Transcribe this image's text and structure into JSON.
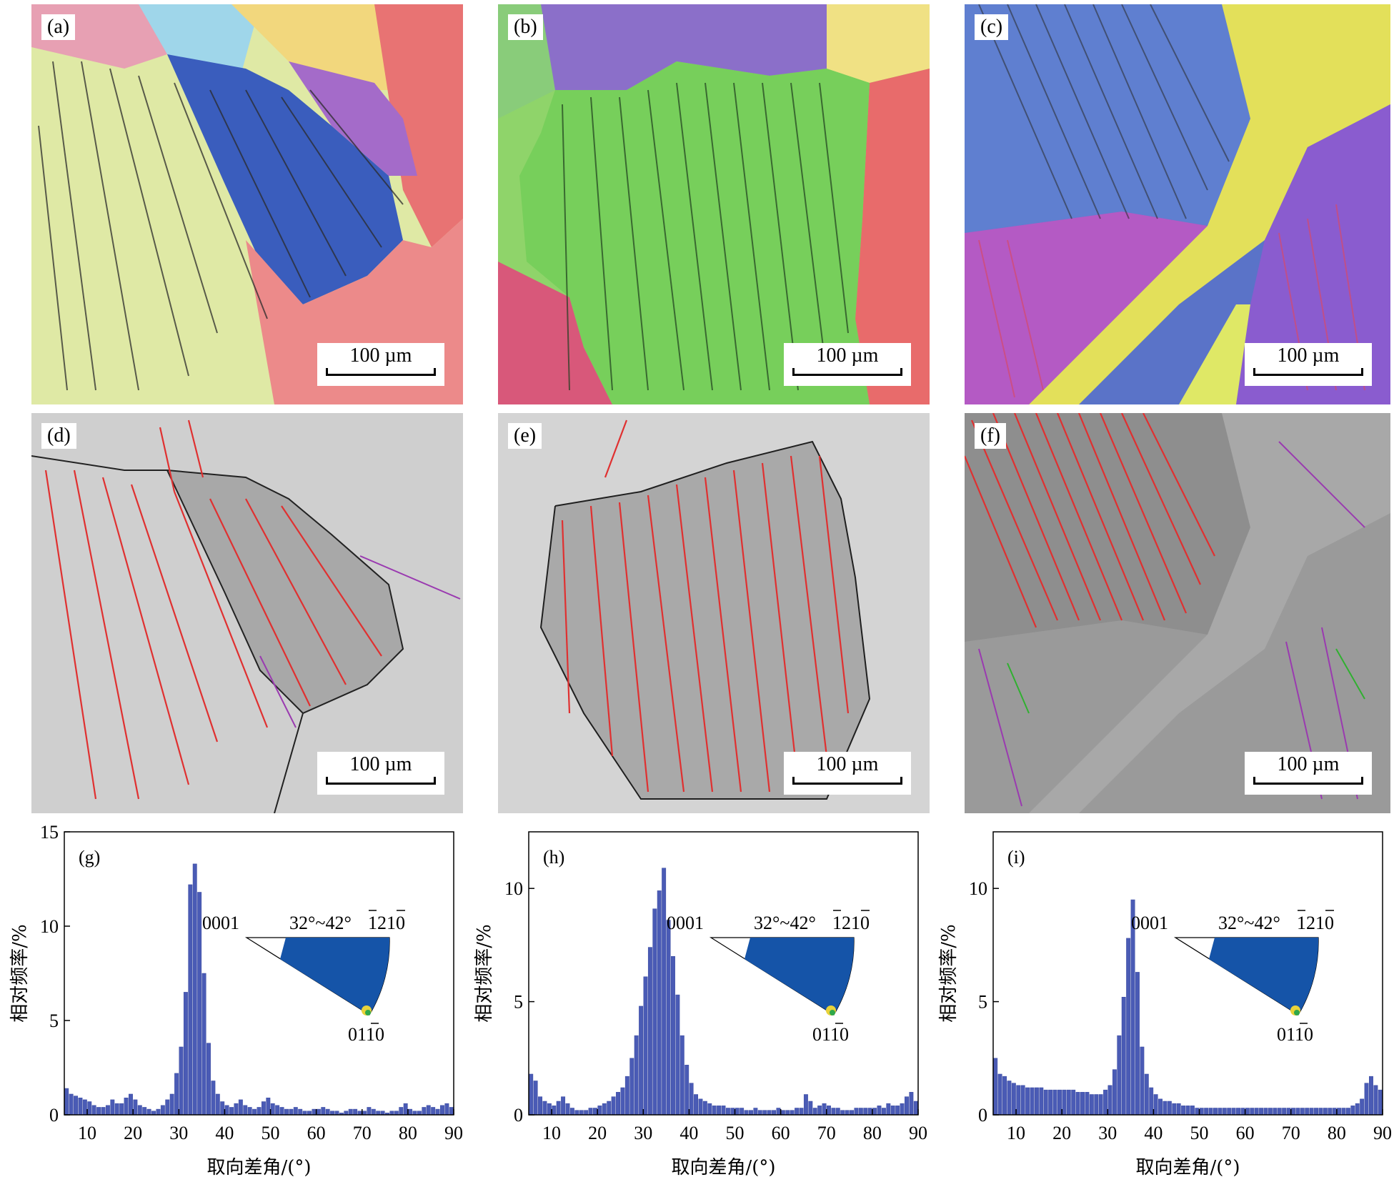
{
  "panels": [
    {
      "label": "(a)",
      "scale": "100 µm"
    },
    {
      "label": "(b)",
      "scale": "100 µm"
    },
    {
      "label": "(c)",
      "scale": "100 µm"
    },
    {
      "label": "(d)",
      "scale": "100 µm"
    },
    {
      "label": "(e)",
      "scale": "100 µm"
    },
    {
      "label": "(f)",
      "scale": "100 µm"
    }
  ],
  "inset": {
    "left_label": "0001",
    "range_label": "32°~42°",
    "right_label": "1210",
    "bottom_label": "0110"
  },
  "chart_data": [
    {
      "type": "bar",
      "panel_label": "(g)",
      "xlabel": "取向差角/(°)",
      "ylabel": "相对频率/%",
      "xlim": [
        5,
        90
      ],
      "ylim": [
        0,
        15
      ],
      "xticks": [
        "10",
        "20",
        "30",
        "40",
        "50",
        "60",
        "70",
        "80",
        "90"
      ],
      "yticks": [
        "0",
        "5",
        "10",
        "15"
      ],
      "x": [
        6,
        7,
        8,
        9,
        10,
        11,
        12,
        13,
        14,
        15,
        16,
        17,
        18,
        19,
        20,
        21,
        22,
        23,
        24,
        25,
        26,
        27,
        28,
        29,
        30,
        31,
        32,
        33,
        34,
        35,
        36,
        37,
        38,
        39,
        40,
        41,
        42,
        43,
        44,
        45,
        46,
        47,
        48,
        49,
        50,
        51,
        52,
        53,
        54,
        55,
        56,
        57,
        58,
        59,
        60,
        61,
        62,
        63,
        64,
        65,
        66,
        67,
        68,
        69,
        70,
        71,
        72,
        73,
        74,
        75,
        76,
        77,
        78,
        79,
        80,
        81,
        82,
        83,
        84,
        85,
        86,
        87,
        88,
        89,
        90
      ],
      "values": [
        1.4,
        1.1,
        1.0,
        0.9,
        0.8,
        0.7,
        0.5,
        0.4,
        0.4,
        0.5,
        0.8,
        0.6,
        0.6,
        0.9,
        1.1,
        0.8,
        0.5,
        0.4,
        0.3,
        0.2,
        0.3,
        0.5,
        0.8,
        1.1,
        2.2,
        3.6,
        6.5,
        12.2,
        13.3,
        11.8,
        7.5,
        3.8,
        1.8,
        1.1,
        0.7,
        0.5,
        0.4,
        0.6,
        0.8,
        0.5,
        0.4,
        0.3,
        0.4,
        0.7,
        0.9,
        0.6,
        0.5,
        0.4,
        0.3,
        0.3,
        0.4,
        0.3,
        0.2,
        0.2,
        0.3,
        0.3,
        0.4,
        0.3,
        0.2,
        0.2,
        0.1,
        0.2,
        0.3,
        0.3,
        0.2,
        0.2,
        0.4,
        0.3,
        0.2,
        0.2,
        0.1,
        0.2,
        0.2,
        0.4,
        0.6,
        0.3,
        0.2,
        0.2,
        0.4,
        0.5,
        0.4,
        0.3,
        0.5,
        0.6,
        0.4
      ]
    },
    {
      "type": "bar",
      "panel_label": "(h)",
      "xlabel": "取向差角/(°)",
      "ylabel": "相对频率/%",
      "xlim": [
        5,
        90
      ],
      "ylim": [
        0,
        12.5
      ],
      "xticks": [
        "10",
        "20",
        "30",
        "40",
        "50",
        "60",
        "70",
        "80",
        "90"
      ],
      "yticks": [
        "0",
        "5",
        "10"
      ],
      "x": [
        6,
        7,
        8,
        9,
        10,
        11,
        12,
        13,
        14,
        15,
        16,
        17,
        18,
        19,
        20,
        21,
        22,
        23,
        24,
        25,
        26,
        27,
        28,
        29,
        30,
        31,
        32,
        33,
        34,
        35,
        36,
        37,
        38,
        39,
        40,
        41,
        42,
        43,
        44,
        45,
        46,
        47,
        48,
        49,
        50,
        51,
        52,
        53,
        54,
        55,
        56,
        57,
        58,
        59,
        60,
        61,
        62,
        63,
        64,
        65,
        66,
        67,
        68,
        69,
        70,
        71,
        72,
        73,
        74,
        75,
        76,
        77,
        78,
        79,
        80,
        81,
        82,
        83,
        84,
        85,
        86,
        87,
        88,
        89,
        90
      ],
      "values": [
        1.8,
        1.5,
        0.8,
        0.6,
        0.5,
        0.4,
        0.6,
        0.8,
        0.5,
        0.3,
        0.2,
        0.2,
        0.2,
        0.3,
        0.3,
        0.4,
        0.5,
        0.6,
        0.8,
        1.0,
        1.2,
        1.7,
        2.5,
        3.5,
        4.8,
        6.1,
        7.4,
        9.1,
        9.9,
        10.9,
        8.6,
        7.0,
        5.3,
        3.5,
        2.2,
        1.4,
        0.9,
        0.7,
        0.6,
        0.5,
        0.4,
        0.4,
        0.4,
        0.3,
        0.3,
        0.3,
        0.3,
        0.2,
        0.2,
        0.3,
        0.2,
        0.2,
        0.2,
        0.2,
        0.3,
        0.2,
        0.2,
        0.2,
        0.3,
        0.3,
        0.9,
        0.6,
        0.3,
        0.4,
        0.5,
        0.4,
        0.3,
        0.3,
        0.2,
        0.2,
        0.2,
        0.3,
        0.3,
        0.3,
        0.3,
        0.3,
        0.4,
        0.3,
        0.5,
        0.4,
        0.4,
        0.5,
        0.8,
        1.0,
        0.6
      ]
    },
    {
      "type": "bar",
      "panel_label": "(i)",
      "xlabel": "取向差角/(°)",
      "ylabel": "相对频率/%",
      "xlim": [
        5,
        90
      ],
      "ylim": [
        0,
        12.5
      ],
      "xticks": [
        "10",
        "20",
        "30",
        "40",
        "50",
        "60",
        "70",
        "80",
        "90"
      ],
      "yticks": [
        "0",
        "5",
        "10"
      ],
      "x": [
        6,
        7,
        8,
        9,
        10,
        11,
        12,
        13,
        14,
        15,
        16,
        17,
        18,
        19,
        20,
        21,
        22,
        23,
        24,
        25,
        26,
        27,
        28,
        29,
        30,
        31,
        32,
        33,
        34,
        35,
        36,
        37,
        38,
        39,
        40,
        41,
        42,
        43,
        44,
        45,
        46,
        47,
        48,
        49,
        50,
        51,
        52,
        53,
        54,
        55,
        56,
        57,
        58,
        59,
        60,
        61,
        62,
        63,
        64,
        65,
        66,
        67,
        68,
        69,
        70,
        71,
        72,
        73,
        74,
        75,
        76,
        77,
        78,
        79,
        80,
        81,
        82,
        83,
        84,
        85,
        86,
        87,
        88,
        89,
        90
      ],
      "values": [
        2.5,
        1.8,
        1.7,
        1.5,
        1.4,
        1.3,
        1.3,
        1.2,
        1.2,
        1.2,
        1.2,
        1.1,
        1.1,
        1.1,
        1.1,
        1.1,
        1.1,
        1.1,
        1.0,
        1.0,
        1.0,
        0.9,
        0.9,
        0.9,
        1.1,
        1.3,
        2.0,
        3.5,
        5.2,
        7.8,
        9.5,
        6.3,
        3.0,
        1.8,
        1.2,
        0.9,
        0.7,
        0.6,
        0.6,
        0.5,
        0.5,
        0.4,
        0.4,
        0.4,
        0.3,
        0.3,
        0.3,
        0.3,
        0.3,
        0.3,
        0.3,
        0.3,
        0.3,
        0.3,
        0.3,
        0.3,
        0.3,
        0.3,
        0.3,
        0.3,
        0.3,
        0.3,
        0.3,
        0.3,
        0.3,
        0.3,
        0.3,
        0.3,
        0.3,
        0.3,
        0.3,
        0.3,
        0.3,
        0.3,
        0.3,
        0.3,
        0.3,
        0.3,
        0.4,
        0.5,
        0.7,
        1.4,
        1.7,
        1.3,
        1.1
      ]
    }
  ]
}
